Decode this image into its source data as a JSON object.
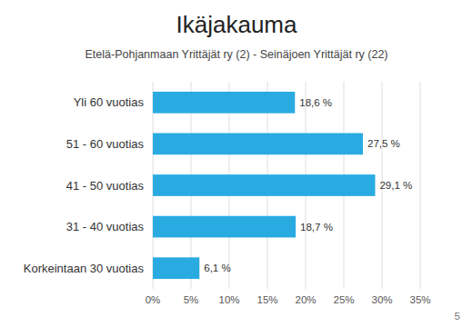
{
  "chart_data": {
    "type": "bar",
    "orientation": "horizontal",
    "title": "Ikäjakauma",
    "subtitle": "Etelä-Pohjanmaan Yrittäjät ry (2) - Seinäjoen Yrittäjät ry (22)",
    "categories": [
      "Yli 60 vuotias",
      "51 - 60 vuotias",
      "41 - 50 vuotias",
      "31 - 40 vuotias",
      "Korkeintaan 30 vuotias"
    ],
    "values": [
      18.6,
      27.5,
      29.1,
      18.7,
      6.1
    ],
    "value_labels": [
      "18,6 %",
      "27,5 %",
      "29,1 %",
      "18,7 %",
      "6,1 %"
    ],
    "data_labels": true,
    "color": "#29ABE2",
    "xlim": [
      0,
      35
    ],
    "xticks": [
      {
        "value": 0,
        "label": "0%"
      },
      {
        "value": 5,
        "label": "5%"
      },
      {
        "value": 10,
        "label": "10%"
      },
      {
        "value": 15,
        "label": "15%"
      },
      {
        "value": 20,
        "label": "20%"
      },
      {
        "value": 25,
        "label": "25%"
      },
      {
        "value": 30,
        "label": "30%"
      },
      {
        "value": 35,
        "label": "35%"
      }
    ],
    "grid": true,
    "annotations": [
      "5"
    ]
  }
}
